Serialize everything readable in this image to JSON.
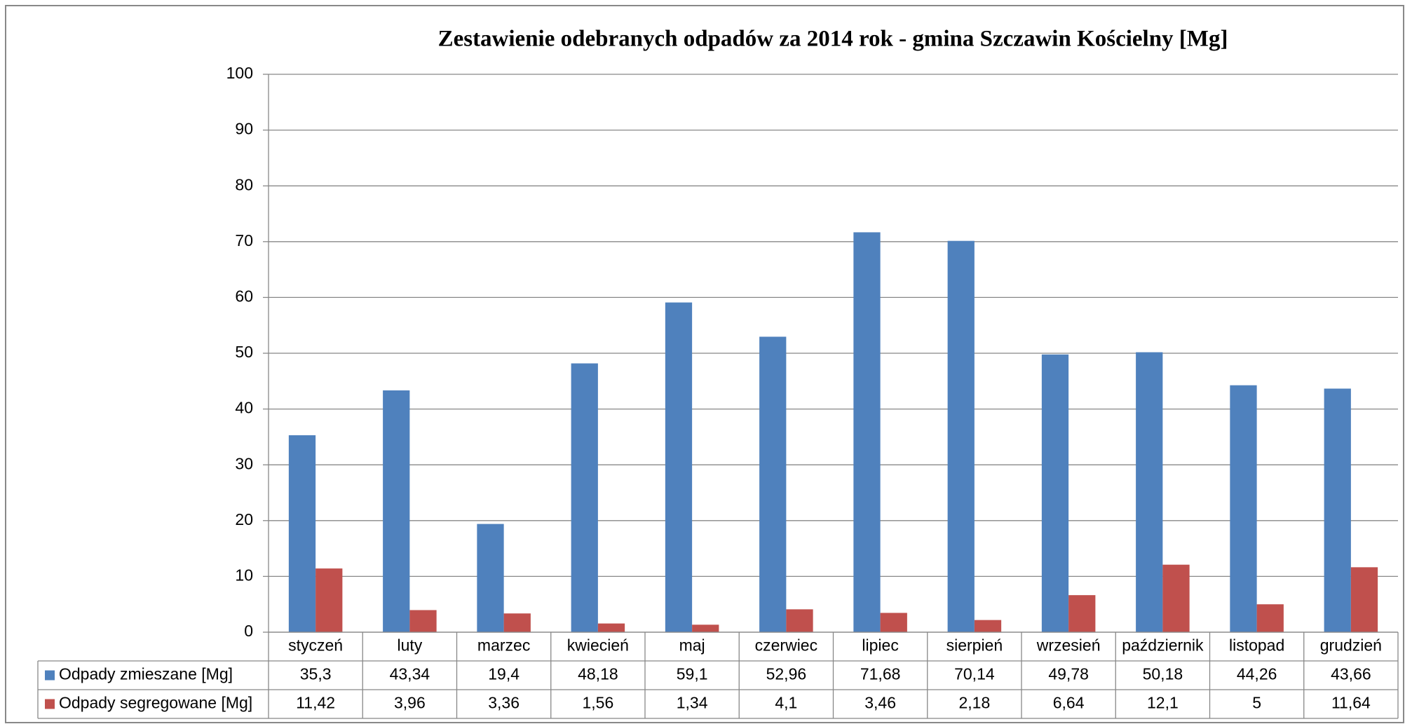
{
  "chart_data": {
    "type": "bar",
    "title": "Zestawienie  odebranych  odpadów  za  2014 rok   - gmina  Szczawin  Kościelny [Mg]",
    "categories": [
      "styczeń",
      "luty",
      "marzec",
      "kwiecień",
      "maj",
      "czerwiec",
      "lipiec",
      "sierpień",
      "wrzesień",
      "październik",
      "listopad",
      "grudzień"
    ],
    "series": [
      {
        "name": "Odpady zmieszane [Mg]",
        "color": "#4f81bd",
        "values": [
          35.3,
          43.34,
          19.4,
          48.18,
          59.1,
          52.96,
          71.68,
          70.14,
          49.78,
          50.18,
          44.26,
          43.66
        ],
        "value_labels": [
          "35,3",
          "43,34",
          "19,4",
          "48,18",
          "59,1",
          "52,96",
          "71,68",
          "70,14",
          "49,78",
          "50,18",
          "44,26",
          "43,66"
        ]
      },
      {
        "name": "Odpady segregowane [Mg]",
        "color": "#c0504d",
        "values": [
          11.42,
          3.96,
          3.36,
          1.56,
          1.34,
          4.1,
          3.46,
          2.18,
          6.64,
          12.1,
          5,
          11.64
        ],
        "value_labels": [
          "11,42",
          "3,96",
          "3,36",
          "1,56",
          "1,34",
          "4,1",
          "3,46",
          "2,18",
          "6,64",
          "12,1",
          "5",
          "11,64"
        ]
      }
    ],
    "ylim": [
      0,
      100
    ],
    "yticks": [
      0,
      10,
      20,
      30,
      40,
      50,
      60,
      70,
      80,
      90,
      100
    ],
    "grid": true
  }
}
